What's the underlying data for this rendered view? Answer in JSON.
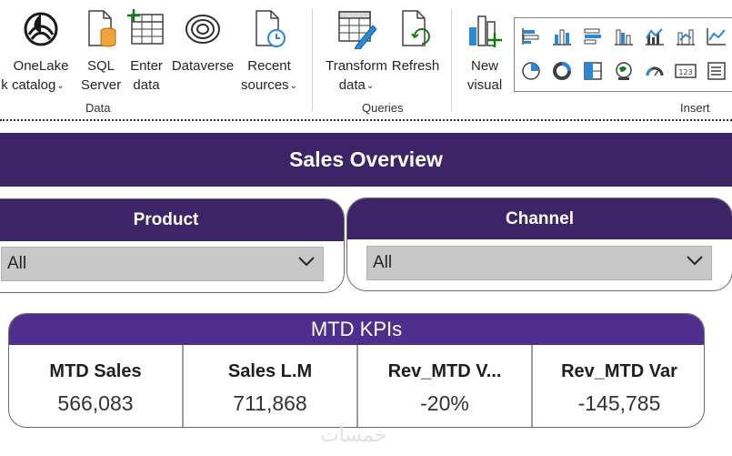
{
  "ribbon": {
    "data_group": {
      "label": "Data",
      "buttons": [
        {
          "line1": "OneLake",
          "line2": "k catalog",
          "icon": "onelake-icon"
        },
        {
          "line1": "SQL",
          "line2": "Server",
          "icon": "sql-server-icon"
        },
        {
          "line1": "Enter",
          "line2": "data",
          "icon": "enter-data-icon"
        },
        {
          "line1": "Dataverse",
          "line2": "",
          "icon": "dataverse-icon"
        },
        {
          "line1": "Recent",
          "line2": "sources",
          "icon": "recent-sources-icon"
        }
      ]
    },
    "queries_group": {
      "label": "Queries",
      "buttons": [
        {
          "line1": "Transform",
          "line2": "data",
          "icon": "transform-data-icon"
        },
        {
          "line1": "Refresh",
          "line2": "",
          "icon": "refresh-icon"
        }
      ]
    },
    "insert_group": {
      "label": "Insert",
      "new_visual": {
        "line1": "New",
        "line2": "visual",
        "icon": "new-visual-icon"
      },
      "gallery": [
        "stacked-bar-icon",
        "stacked-column-icon",
        "clustered-bar-icon",
        "clustered-column-icon",
        "combo-chart-icon",
        "ribbon-chart-icon",
        "line-chart-icon",
        "pie-chart-icon",
        "donut-chart-icon",
        "treemap-icon",
        "map-icon",
        "gauge-icon",
        "card-icon",
        "multi-row-card-icon"
      ]
    }
  },
  "report": {
    "title": "Sales Overview",
    "slicers": [
      {
        "title": "Product",
        "value": "All"
      },
      {
        "title": "Channel",
        "value": "All"
      }
    ],
    "kpi": {
      "title": "MTD KPIs",
      "cards": [
        {
          "label": "MTD Sales",
          "value": "566,083"
        },
        {
          "label": "Sales L.M",
          "value": "711,868"
        },
        {
          "label": "Rev_MTD V...",
          "value": "-20%"
        },
        {
          "label": "Rev_MTD Var",
          "value": "-145,785"
        }
      ]
    },
    "watermark": "خمسات"
  },
  "colors": {
    "banner": "#3d2466",
    "kpi_header": "#4f2f8e",
    "slicer_dropdown": "#c8c8c8",
    "icon_blue": "#2b88d8",
    "icon_green": "#107c10",
    "icon_orange": "#f2a33a"
  }
}
